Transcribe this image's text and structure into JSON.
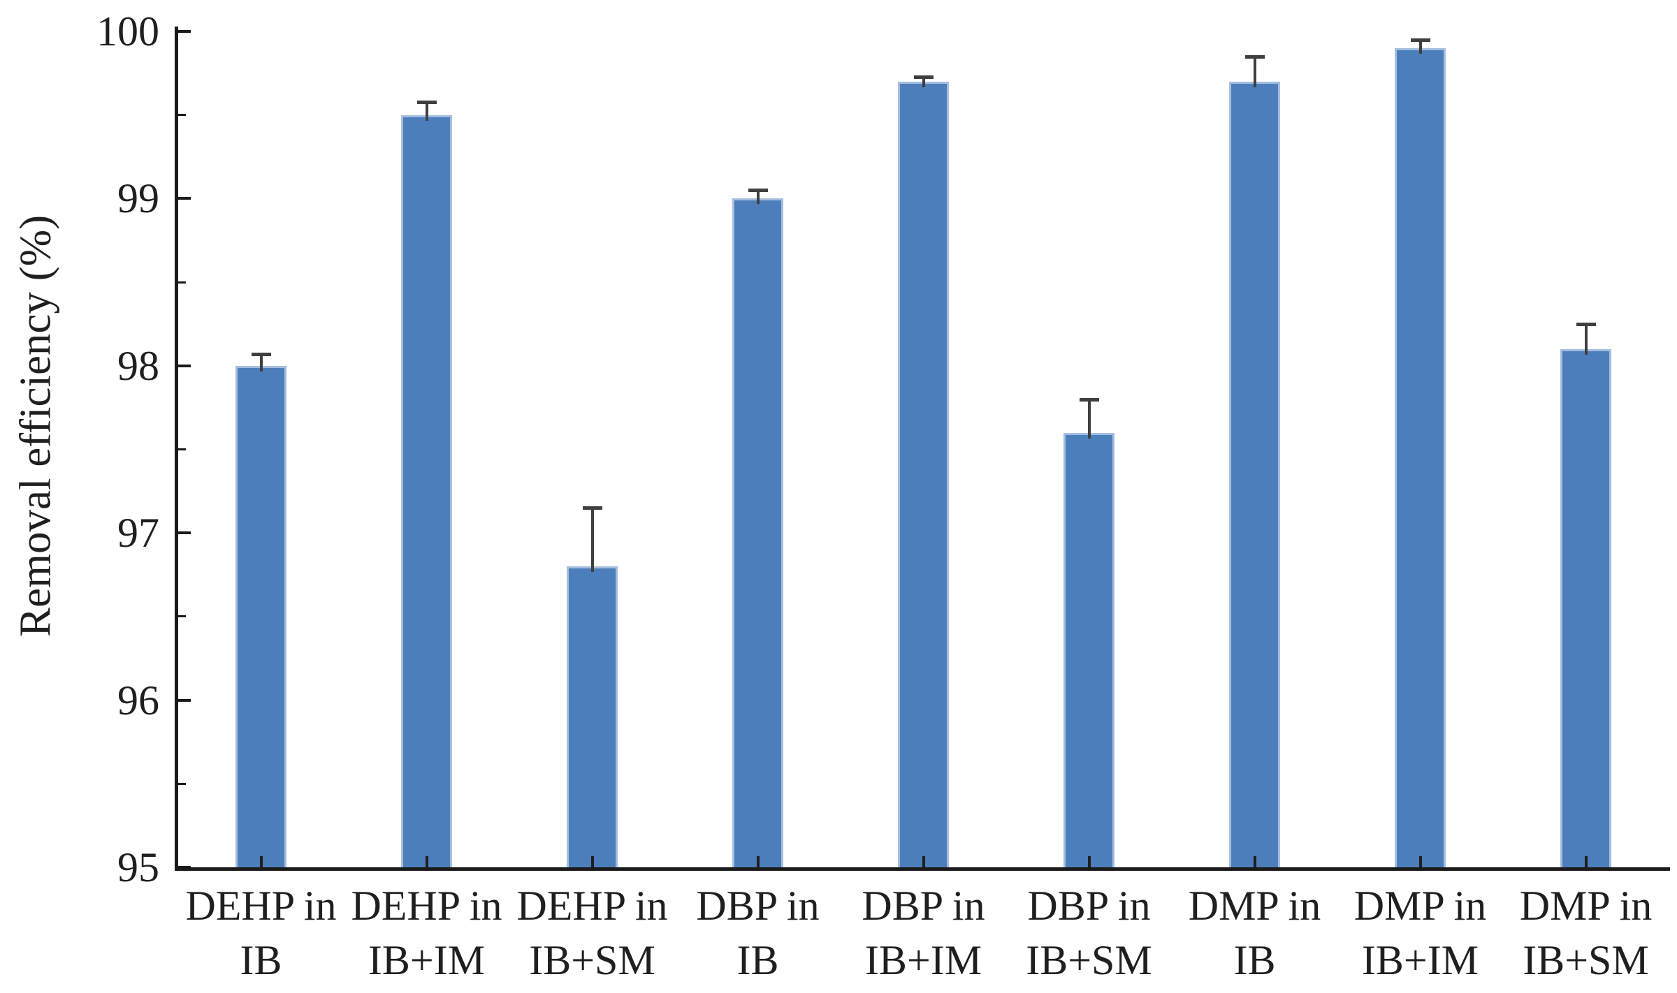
{
  "chart_data": {
    "type": "bar",
    "title": "",
    "xlabel": "",
    "ylabel": "Removal efficiency (%)",
    "ylim": [
      95,
      100
    ],
    "ytick_major": [
      95,
      96,
      97,
      98,
      99,
      100
    ],
    "ytick_minor": [
      95.5,
      96.5,
      97.5,
      98.5,
      99.5
    ],
    "grid": false,
    "legend_position": "none",
    "categories": [
      "DEHP in IB",
      "DEHP in IB+IM",
      "DEHP in IB+SM",
      "DBP in IB",
      "DBP in IB+IM",
      "DBP in IB+SM",
      "DMP in IB",
      "DMP in IB+IM",
      "DMP in IB+SM"
    ],
    "category_label_lines": [
      [
        "DEHP in",
        "IB"
      ],
      [
        "DEHP in",
        "IB+IM"
      ],
      [
        "DEHP in",
        "IB+SM"
      ],
      [
        "DBP in",
        "IB"
      ],
      [
        "DBP in",
        "IB+IM"
      ],
      [
        "DBP in",
        "IB+SM"
      ],
      [
        "DMP in",
        "IB"
      ],
      [
        "DMP in",
        "IB+IM"
      ],
      [
        "DMP in",
        "IB+SM"
      ]
    ],
    "series": [
      {
        "name": "Removal efficiency (%)",
        "values": [
          98.0,
          99.5,
          96.8,
          99.0,
          99.7,
          97.6,
          99.7,
          99.9,
          98.1
        ],
        "errors_plus": [
          0.07,
          0.08,
          0.35,
          0.05,
          0.03,
          0.2,
          0.15,
          0.05,
          0.15
        ]
      }
    ],
    "colors": {
      "bar_fill": "#4C7EBB",
      "bar_border": "#A5BEDF",
      "error_bar": "#3f3f3f",
      "axis": "#1a1a1a",
      "text": "#1f1f1f",
      "background": "#ffffff"
    }
  }
}
